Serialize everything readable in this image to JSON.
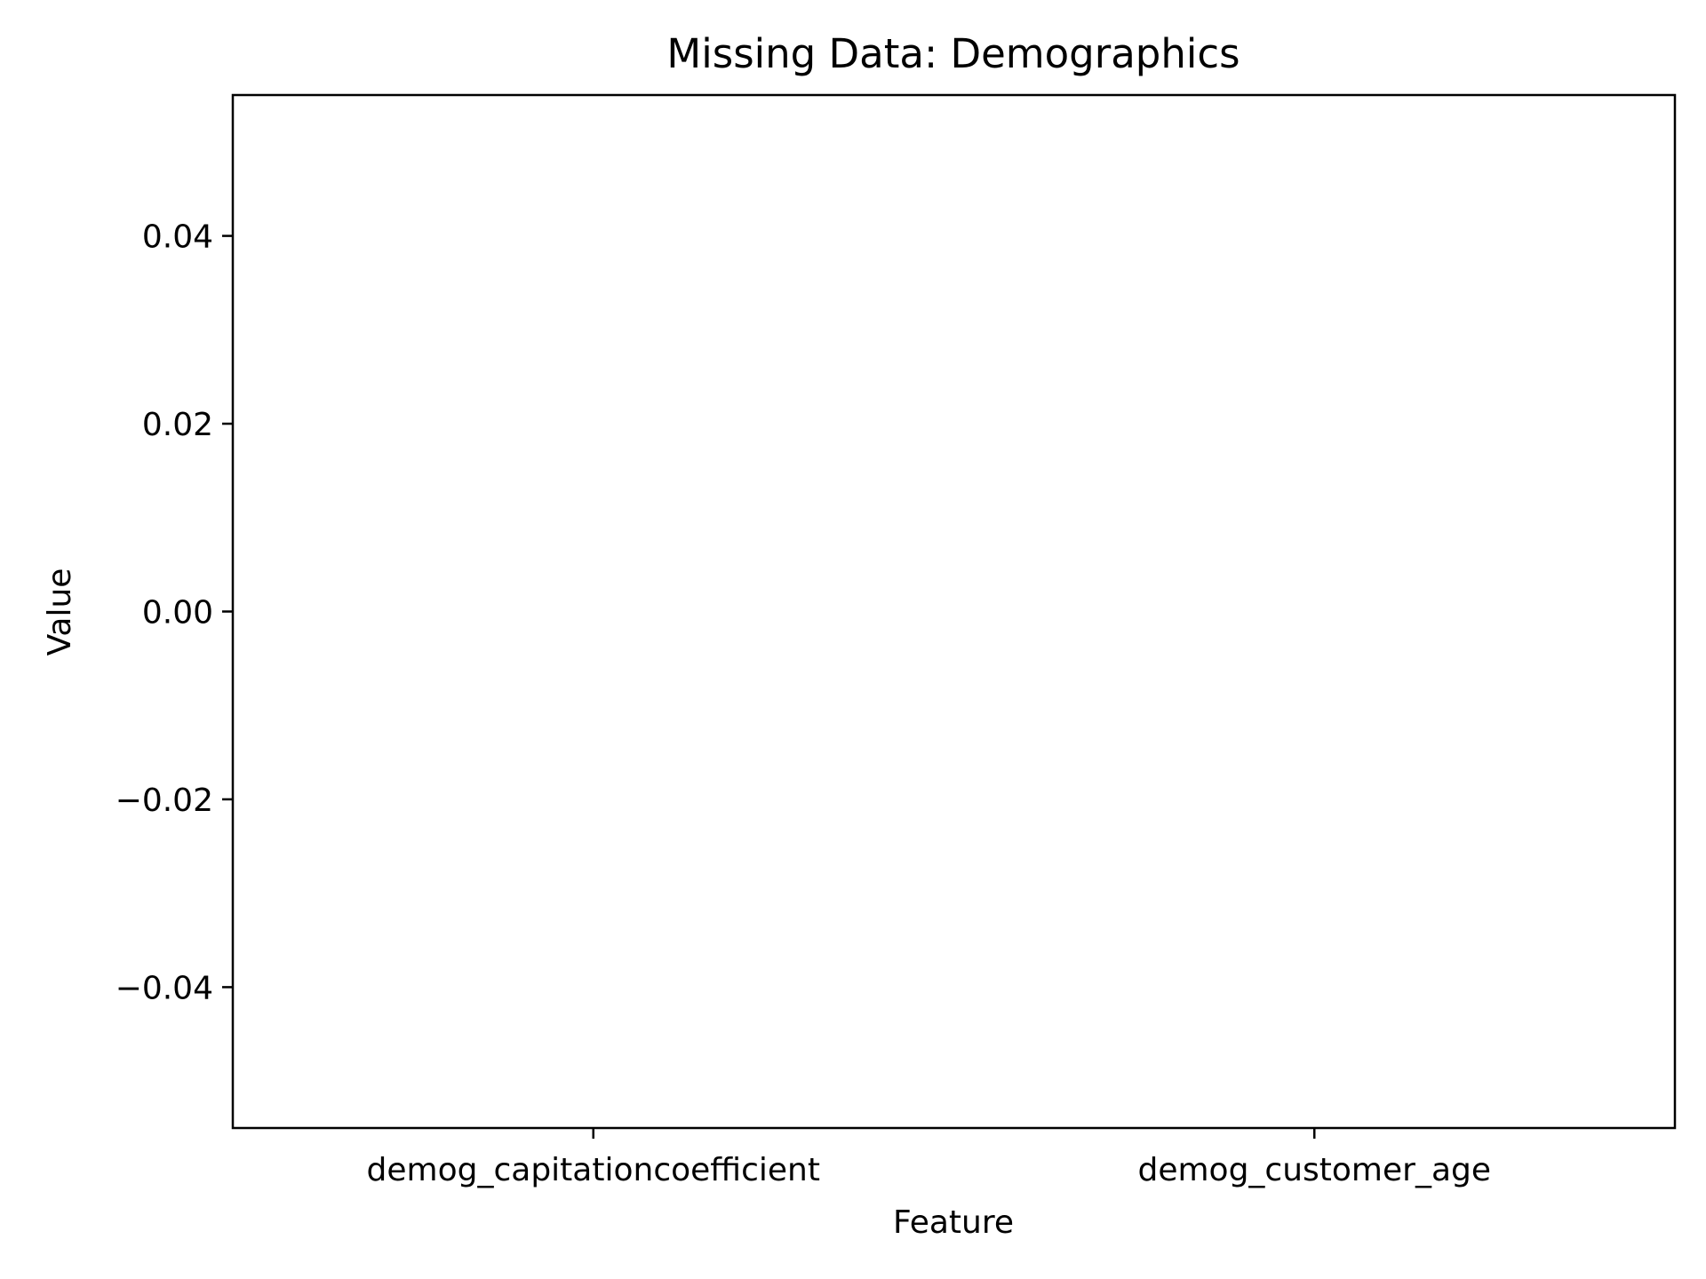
{
  "chart_data": {
    "type": "bar",
    "title": "Missing Data: Demographics",
    "xlabel": "Feature",
    "ylabel": "Value",
    "categories": [
      "demog_capitationcoefficient",
      "demog_customer_age"
    ],
    "values": [
      0,
      0
    ],
    "ylim": [
      -0.055,
      0.055
    ],
    "yticks": [
      -0.04,
      -0.02,
      0.0,
      0.02,
      0.04
    ],
    "ytick_labels": [
      "−0.04",
      "−0.02",
      "0.00",
      "0.02",
      "0.04"
    ],
    "grid": false,
    "legend": "none"
  }
}
